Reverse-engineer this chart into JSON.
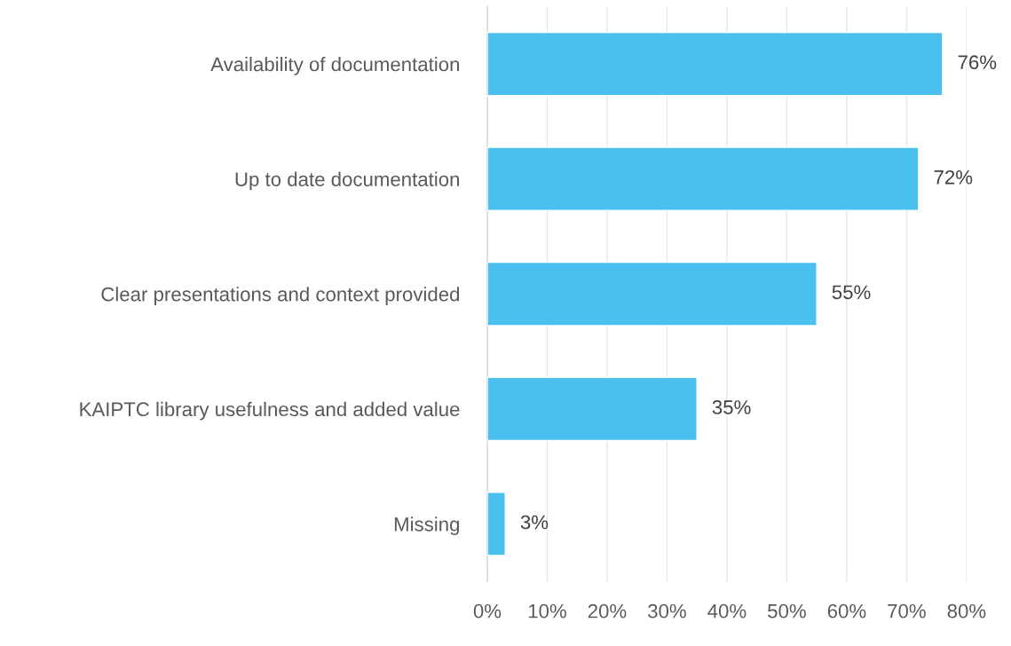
{
  "chart_data": {
    "type": "bar",
    "orientation": "horizontal",
    "categories": [
      "Availability of documentation",
      "Up to date documentation",
      "Clear presentations and context provided",
      "KAIPTC library usefulness and added value",
      "Missing"
    ],
    "values": [
      76,
      72,
      55,
      35,
      3
    ],
    "value_labels": [
      "76%",
      "72%",
      "55%",
      "35%",
      "3%"
    ],
    "color": "#4bc0ef",
    "xlim": [
      0,
      80
    ],
    "xticks": [
      {
        "value": 0,
        "label": "0%"
      },
      {
        "value": 10,
        "label": "10%"
      },
      {
        "value": 20,
        "label": "20%"
      },
      {
        "value": 30,
        "label": "30%"
      },
      {
        "value": 40,
        "label": "40%"
      },
      {
        "value": 50,
        "label": "50%"
      },
      {
        "value": 60,
        "label": "60%"
      },
      {
        "value": 70,
        "label": "70%"
      },
      {
        "value": 80,
        "label": "80%"
      }
    ],
    "grid": "x",
    "legend": false
  }
}
